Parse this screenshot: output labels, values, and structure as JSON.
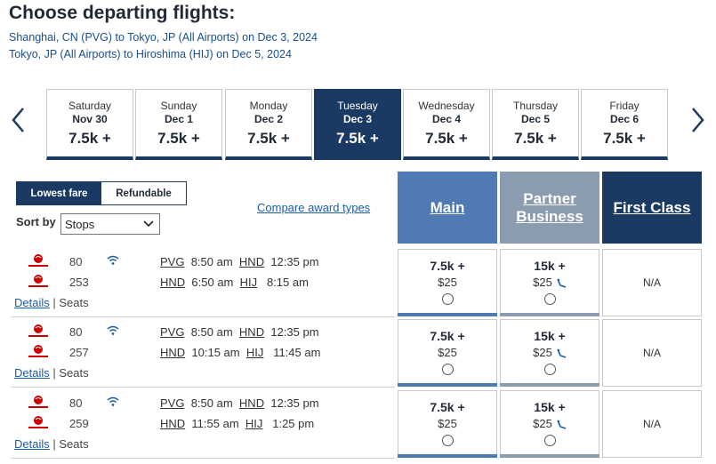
{
  "page_title": "Choose departing flights:",
  "routes": [
    "Shanghai, CN (PVG) to Tokyo, JP (All Airports) on Dec 3, 2024",
    "Tokyo, JP (All Airports) to Hiroshima (HIJ) on Dec 5, 2024"
  ],
  "date_strip": [
    {
      "day": "Saturday",
      "date": "Nov 30",
      "price": "7.5k +"
    },
    {
      "day": "Sunday",
      "date": "Dec 1",
      "price": "7.5k +"
    },
    {
      "day": "Monday",
      "date": "Dec 2",
      "price": "7.5k +"
    },
    {
      "day": "Tuesday",
      "date": "Dec 3",
      "price": "7.5k +",
      "selected": true
    },
    {
      "day": "Wednesday",
      "date": "Dec 4",
      "price": "7.5k +"
    },
    {
      "day": "Thursday",
      "date": "Dec 5",
      "price": "7.5k +"
    },
    {
      "day": "Friday",
      "date": "Dec 6",
      "price": "7.5k +"
    }
  ],
  "fare_toggle": {
    "lowest": "Lowest fare",
    "refundable": "Refundable"
  },
  "sort": {
    "label": "Sort by",
    "value": "Stops"
  },
  "compare_link": "Compare award types",
  "columns": {
    "main": "Main",
    "partner": "Partner Business",
    "first": "First Class"
  },
  "details_label": "Details",
  "separator": "|",
  "seats_label": "Seats",
  "flights": [
    {
      "segments": [
        {
          "flight_no": "80",
          "from": "PVG",
          "dep": "8:50 am",
          "to": "HND",
          "arr": "12:35 pm"
        },
        {
          "flight_no": "253",
          "from": "HND",
          "dep": "6:50 am",
          "to": "HIJ",
          "arr": "8:15 am"
        }
      ],
      "main": {
        "points": "7.5k +",
        "cash": "$25"
      },
      "partner": {
        "points": "15k +",
        "cash": "$25"
      },
      "first": "N/A"
    },
    {
      "segments": [
        {
          "flight_no": "80",
          "from": "PVG",
          "dep": "8:50 am",
          "to": "HND",
          "arr": "12:35 pm"
        },
        {
          "flight_no": "257",
          "from": "HND",
          "dep": "10:15 am",
          "to": "HIJ",
          "arr": "11:45 am"
        }
      ],
      "main": {
        "points": "7.5k +",
        "cash": "$25"
      },
      "partner": {
        "points": "15k +",
        "cash": "$25"
      },
      "first": "N/A"
    },
    {
      "segments": [
        {
          "flight_no": "80",
          "from": "PVG",
          "dep": "8:50 am",
          "to": "HND",
          "arr": "12:35 pm"
        },
        {
          "flight_no": "259",
          "from": "HND",
          "dep": "11:55 am",
          "to": "HIJ",
          "arr": "1:25 pm"
        }
      ],
      "main": {
        "points": "7.5k +",
        "cash": "$25"
      },
      "partner": {
        "points": "15k +",
        "cash": "$25"
      },
      "first": "N/A"
    }
  ],
  "icons": {
    "airline_logo": "japan-airlines-logo",
    "wifi": "wifi-icon",
    "seat": "lie-flat-seat-icon",
    "prev": "chevron-left-icon",
    "next": "chevron-right-icon"
  },
  "colors": {
    "navy": "#1b3a63",
    "main_col": "#4f7ab3",
    "partner_col": "#8b9bb0",
    "link": "#1b5ea8",
    "jal_red": "#cc0000"
  }
}
